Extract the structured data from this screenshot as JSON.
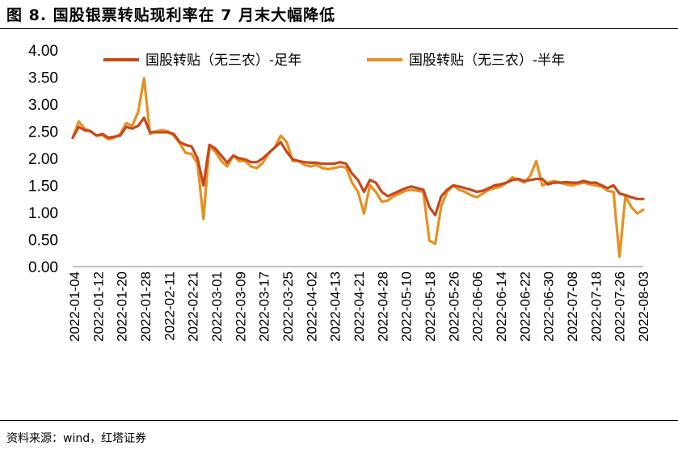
{
  "figure": {
    "title": "图 8. 国股银票转贴现利率在 7 月末大幅降低",
    "source": "资料来源：wind，红塔证券"
  },
  "chart_data": {
    "type": "line",
    "title": "",
    "xlabel": "",
    "ylabel": "",
    "ylim": [
      0,
      4
    ],
    "yticks": [
      "0.00",
      "0.50",
      "1.00",
      "1.50",
      "2.00",
      "2.50",
      "3.00",
      "3.50",
      "4.00"
    ],
    "xticks": [
      "2022-01-04",
      "2022-01-12",
      "2022-01-20",
      "2022-01-28",
      "2022-02-11",
      "2022-02-21",
      "2022-03-01",
      "2022-03-09",
      "2022-03-17",
      "2022-03-25",
      "2022-04-02",
      "2022-04-13",
      "2022-04-21",
      "2022-04-28",
      "2022-05-10",
      "2022-05-18",
      "2022-05-26",
      "2022-06-06",
      "2022-06-14",
      "2022-06-22",
      "2022-06-30",
      "2022-07-08",
      "2022-07-18",
      "2022-07-26",
      "2022-08-03"
    ],
    "grid": false,
    "legend_position": "top",
    "series": [
      {
        "name": "国股转贴（无三农）-足年",
        "color": "#C8471B",
        "values": [
          2.38,
          2.58,
          2.52,
          2.5,
          2.42,
          2.45,
          2.38,
          2.4,
          2.42,
          2.58,
          2.55,
          2.6,
          2.75,
          2.48,
          2.48,
          2.48,
          2.48,
          2.45,
          2.3,
          2.25,
          2.22,
          2.0,
          1.5,
          2.25,
          2.18,
          2.05,
          1.92,
          2.05,
          2.0,
          1.98,
          1.93,
          1.93,
          2.0,
          2.1,
          2.2,
          2.3,
          2.12,
          1.98,
          1.95,
          1.93,
          1.92,
          1.92,
          1.9,
          1.9,
          1.9,
          1.93,
          1.9,
          1.72,
          1.6,
          1.38,
          1.6,
          1.55,
          1.38,
          1.3,
          1.35,
          1.4,
          1.45,
          1.48,
          1.45,
          1.42,
          1.1,
          0.95,
          1.3,
          1.42,
          1.5,
          1.48,
          1.45,
          1.42,
          1.38,
          1.4,
          1.45,
          1.5,
          1.52,
          1.55,
          1.6,
          1.62,
          1.58,
          1.6,
          1.62,
          1.62,
          1.52,
          1.55,
          1.55,
          1.56,
          1.55,
          1.55,
          1.58,
          1.55,
          1.55,
          1.5,
          1.45,
          1.5,
          1.35,
          1.32,
          1.28,
          1.25,
          1.25
        ]
      },
      {
        "name": "国股转贴（无三农）-半年",
        "color": "#E8901E",
        "values": [
          2.38,
          2.68,
          2.55,
          2.5,
          2.42,
          2.43,
          2.35,
          2.38,
          2.45,
          2.65,
          2.6,
          2.85,
          3.48,
          2.45,
          2.5,
          2.52,
          2.5,
          2.42,
          2.28,
          2.1,
          2.08,
          1.9,
          0.88,
          2.22,
          2.12,
          1.95,
          1.85,
          2.05,
          1.95,
          1.95,
          1.85,
          1.82,
          1.92,
          2.1,
          2.2,
          2.42,
          2.3,
          1.95,
          1.95,
          1.88,
          1.85,
          1.88,
          1.82,
          1.8,
          1.82,
          1.85,
          1.83,
          1.55,
          1.38,
          0.98,
          1.5,
          1.38,
          1.2,
          1.22,
          1.3,
          1.35,
          1.4,
          1.42,
          1.4,
          1.38,
          0.48,
          0.42,
          1.12,
          1.38,
          1.5,
          1.42,
          1.38,
          1.32,
          1.28,
          1.35,
          1.42,
          1.45,
          1.48,
          1.55,
          1.65,
          1.6,
          1.55,
          1.68,
          1.95,
          1.5,
          1.55,
          1.58,
          1.55,
          1.52,
          1.5,
          1.53,
          1.55,
          1.52,
          1.5,
          1.48,
          1.4,
          1.38,
          0.18,
          1.3,
          1.1,
          0.98,
          1.05
        ]
      }
    ]
  }
}
